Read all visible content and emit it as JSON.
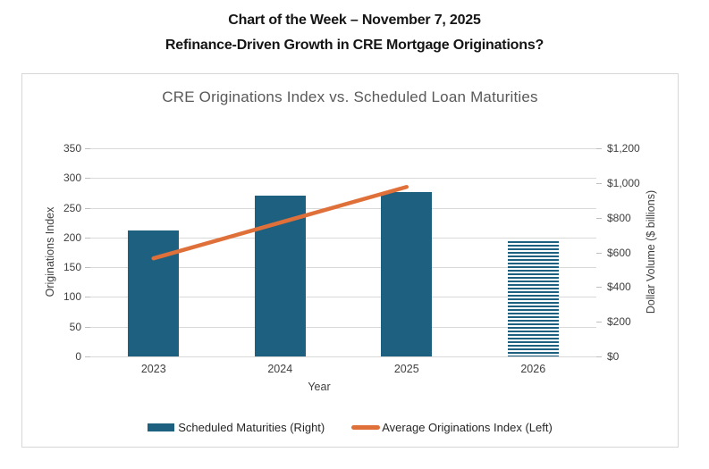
{
  "header": {
    "line1": "Chart of the Week – November 7, 2025",
    "line2": "Refinance-Driven Growth in CRE Mortgage Originations?"
  },
  "chart": {
    "title": "CRE Originations Index  vs. Scheduled Loan Maturities",
    "xlabel": "Year",
    "left_axis": {
      "label": "Originations Index",
      "ticks": [
        "350",
        "300",
        "250",
        "200",
        "150",
        "100",
        "50",
        "0"
      ]
    },
    "right_axis": {
      "label": "Dollar Volume ($ billions)",
      "ticks": [
        "$1,200",
        "$1,000",
        "$800",
        "$600",
        "$400",
        "$200",
        "$0"
      ]
    },
    "legend": [
      {
        "label": "Scheduled Maturities (Right)",
        "type": "bar",
        "color": "#1e6080"
      },
      {
        "label": "Average Originations Index (Left)",
        "type": "line",
        "color": "#e0703a"
      }
    ],
    "colors": {
      "bar": "#1e6080",
      "line": "#e0703a",
      "gridline": "#d9d9d9",
      "title": "#595959"
    }
  },
  "chart_data": {
    "type": "bar",
    "subtype": "combo-bar-line-dual-axis",
    "title": "CRE Originations Index  vs. Scheduled Loan Maturities",
    "xlabel": "Year",
    "categories": [
      "2023",
      "2024",
      "2025",
      "2026"
    ],
    "series": [
      {
        "name": "Scheduled Maturities (Right)",
        "type": "bar",
        "axis": "right",
        "color": "#1e6080",
        "values": [
          725,
          925,
          950,
          665
        ],
        "striped": [
          false,
          false,
          false,
          true
        ]
      },
      {
        "name": "Average Originations Index (Left)",
        "type": "line",
        "axis": "left",
        "color": "#e0703a",
        "values": [
          165,
          225,
          285,
          null
        ]
      }
    ],
    "left_axis": {
      "label": "Originations Index",
      "range": [
        0,
        350
      ],
      "tick_step": 50
    },
    "right_axis": {
      "label": "Dollar Volume ($ billions)",
      "range": [
        0,
        1200
      ],
      "tick_step": 200
    },
    "grid": true,
    "legend_position": "bottom"
  }
}
